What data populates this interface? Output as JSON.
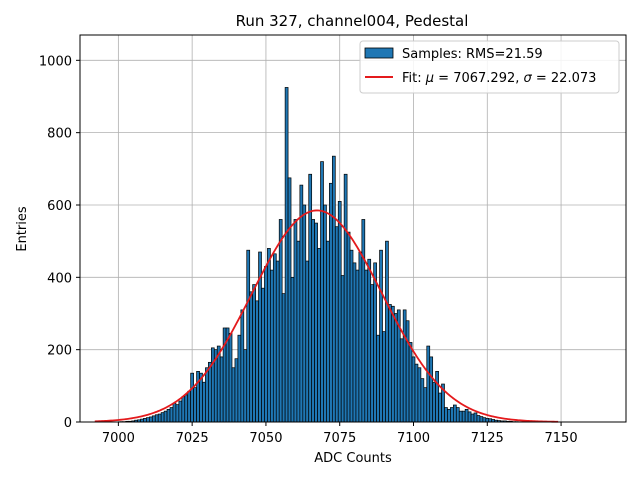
{
  "chart_data": {
    "type": "bar",
    "title": "Run 327, channel004, Pedestal",
    "xlabel": "ADC Counts",
    "ylabel": "Entries",
    "xlim": [
      6987,
      7172
    ],
    "ylim": [
      0,
      1070
    ],
    "xticks": [
      7000,
      7025,
      7050,
      7075,
      7100,
      7125,
      7150
    ],
    "yticks": [
      0,
      200,
      400,
      600,
      800,
      1000
    ],
    "grid": true,
    "legend_position": "top-right",
    "histogram": {
      "name": "Samples: RMS=21.59",
      "color": "#1f77b4",
      "bin_width": 1,
      "bins": [
        [
          7001,
          1
        ],
        [
          7002,
          1
        ],
        [
          7003,
          2
        ],
        [
          7004,
          2
        ],
        [
          7005,
          3
        ],
        [
          7006,
          5
        ],
        [
          7007,
          6
        ],
        [
          7008,
          8
        ],
        [
          7009,
          10
        ],
        [
          7010,
          12
        ],
        [
          7011,
          14
        ],
        [
          7012,
          17
        ],
        [
          7013,
          20
        ],
        [
          7014,
          22
        ],
        [
          7015,
          26
        ],
        [
          7016,
          30
        ],
        [
          7017,
          35
        ],
        [
          7018,
          40
        ],
        [
          7019,
          52
        ],
        [
          7020,
          48
        ],
        [
          7021,
          58
        ],
        [
          7022,
          70
        ],
        [
          7023,
          75
        ],
        [
          7024,
          85
        ],
        [
          7025,
          135
        ],
        [
          7026,
          95
        ],
        [
          7027,
          140
        ],
        [
          7028,
          135
        ],
        [
          7029,
          110
        ],
        [
          7030,
          150
        ],
        [
          7031,
          165
        ],
        [
          7032,
          205
        ],
        [
          7033,
          200
        ],
        [
          7034,
          210
        ],
        [
          7035,
          180
        ],
        [
          7036,
          260
        ],
        [
          7037,
          260
        ],
        [
          7038,
          245
        ],
        [
          7039,
          150
        ],
        [
          7040,
          175
        ],
        [
          7041,
          240
        ],
        [
          7042,
          310
        ],
        [
          7043,
          200
        ],
        [
          7044,
          475
        ],
        [
          7045,
          360
        ],
        [
          7046,
          380
        ],
        [
          7047,
          335
        ],
        [
          7048,
          470
        ],
        [
          7049,
          370
        ],
        [
          7050,
          430
        ],
        [
          7051,
          480
        ],
        [
          7052,
          420
        ],
        [
          7053,
          465
        ],
        [
          7054,
          445
        ],
        [
          7055,
          560
        ],
        [
          7056,
          355
        ],
        [
          7057,
          925
        ],
        [
          7058,
          675
        ],
        [
          7059,
          400
        ],
        [
          7060,
          560
        ],
        [
          7061,
          500
        ],
        [
          7062,
          655
        ],
        [
          7063,
          600
        ],
        [
          7064,
          445
        ],
        [
          7065,
          685
        ],
        [
          7066,
          560
        ],
        [
          7067,
          550
        ],
        [
          7068,
          480
        ],
        [
          7069,
          720
        ],
        [
          7070,
          600
        ],
        [
          7071,
          500
        ],
        [
          7072,
          660
        ],
        [
          7073,
          735
        ],
        [
          7074,
          540
        ],
        [
          7075,
          610
        ],
        [
          7076,
          405
        ],
        [
          7077,
          685
        ],
        [
          7078,
          525
        ],
        [
          7079,
          475
        ],
        [
          7080,
          440
        ],
        [
          7081,
          420
        ],
        [
          7082,
          470
        ],
        [
          7083,
          560
        ],
        [
          7084,
          420
        ],
        [
          7085,
          450
        ],
        [
          7086,
          380
        ],
        [
          7087,
          440
        ],
        [
          7088,
          240
        ],
        [
          7089,
          475
        ],
        [
          7090,
          250
        ],
        [
          7091,
          500
        ],
        [
          7092,
          325
        ],
        [
          7093,
          320
        ],
        [
          7094,
          300
        ],
        [
          7095,
          310
        ],
        [
          7096,
          230
        ],
        [
          7097,
          310
        ],
        [
          7098,
          280
        ],
        [
          7099,
          220
        ],
        [
          7100,
          180
        ],
        [
          7101,
          160
        ],
        [
          7102,
          150
        ],
        [
          7103,
          120
        ],
        [
          7104,
          95
        ],
        [
          7105,
          210
        ],
        [
          7106,
          180
        ],
        [
          7107,
          110
        ],
        [
          7108,
          140
        ],
        [
          7109,
          80
        ],
        [
          7110,
          105
        ],
        [
          7111,
          40
        ],
        [
          7112,
          35
        ],
        [
          7113,
          40
        ],
        [
          7114,
          47
        ],
        [
          7115,
          40
        ],
        [
          7116,
          30
        ],
        [
          7117,
          30
        ],
        [
          7118,
          35
        ],
        [
          7119,
          28
        ],
        [
          7120,
          22
        ],
        [
          7121,
          25
        ],
        [
          7122,
          18
        ],
        [
          7123,
          15
        ],
        [
          7124,
          12
        ],
        [
          7125,
          10
        ],
        [
          7126,
          9
        ],
        [
          7127,
          7
        ],
        [
          7128,
          5
        ],
        [
          7129,
          4
        ],
        [
          7130,
          3
        ],
        [
          7131,
          3
        ],
        [
          7132,
          2
        ],
        [
          7133,
          2
        ],
        [
          7134,
          1
        ],
        [
          7135,
          1
        ]
      ]
    },
    "fit": {
      "name_prefix": "Fit: ",
      "mu_symbol": "μ",
      "mu_text": " = 7067.292, ",
      "sigma_symbol": "σ",
      "sigma_text": " = 22.073",
      "color": "#e41a1c",
      "mu": 7067.292,
      "sigma": 22.073,
      "amplitude": 585,
      "x_range": [
        6992,
        7149
      ]
    }
  }
}
